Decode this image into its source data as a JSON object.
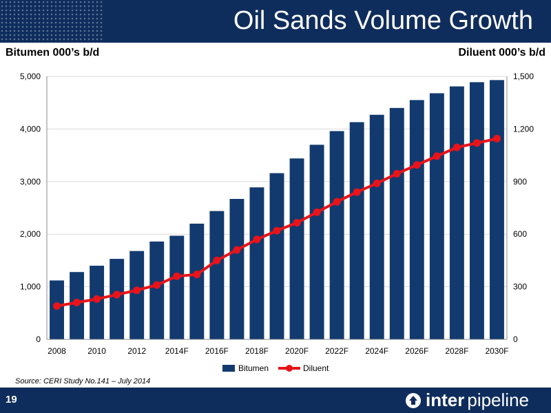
{
  "slide": {
    "title": "Oil Sands Volume Growth",
    "source": "Source: CERI Study No.141 – July 2014",
    "page_number": "19",
    "logo_bold": "inter",
    "logo_light": "pipeline"
  },
  "colors": {
    "brand_navy": "#0f2d5c",
    "bitumen_bar": "#123a6e",
    "diluent_line": "#e8141a",
    "gridline": "#d9d9d9"
  },
  "chart_data": {
    "type": "bar",
    "ylabel": "Bitumen 000’s b/d",
    "y2label": "Diluent 000’s b/d",
    "ylim": [
      0,
      5000
    ],
    "y2lim": [
      0,
      1500
    ],
    "yticks": [
      "0",
      "1,000",
      "2,000",
      "3,000",
      "4,000",
      "5,000"
    ],
    "y2ticks": [
      "0",
      "300",
      "600",
      "900",
      "1,200",
      "1,500"
    ],
    "grid": true,
    "legend_position": "bottom",
    "categories": [
      "2008",
      "2009",
      "2010",
      "2011",
      "2012",
      "2013",
      "2014F",
      "2015F",
      "2016F",
      "2017F",
      "2018F",
      "2019F",
      "2020F",
      "2021F",
      "2022F",
      "2023F",
      "2024F",
      "2025F",
      "2026F",
      "2027F",
      "2028F",
      "2029F",
      "2030F"
    ],
    "xtick_labels": [
      "2008",
      "",
      "2010",
      "",
      "2012",
      "",
      "2014F",
      "",
      "2016F",
      "",
      "2018F",
      "",
      "2020F",
      "",
      "2022F",
      "",
      "2024F",
      "",
      "2026F",
      "",
      "2028F",
      "",
      "2030F"
    ],
    "series": [
      {
        "name": "Bitumen",
        "type": "bar",
        "axis": "left",
        "values": [
          1120,
          1280,
          1400,
          1530,
          1680,
          1860,
          1970,
          2200,
          2440,
          2670,
          2890,
          3160,
          3440,
          3700,
          3960,
          4130,
          4270,
          4400,
          4550,
          4680,
          4810,
          4890,
          4930
        ]
      },
      {
        "name": "Diluent",
        "type": "line",
        "axis": "right",
        "values": [
          190,
          210,
          230,
          255,
          280,
          310,
          360,
          370,
          450,
          510,
          570,
          620,
          665,
          725,
          785,
          840,
          890,
          945,
          995,
          1045,
          1095,
          1120,
          1145
        ]
      }
    ]
  }
}
